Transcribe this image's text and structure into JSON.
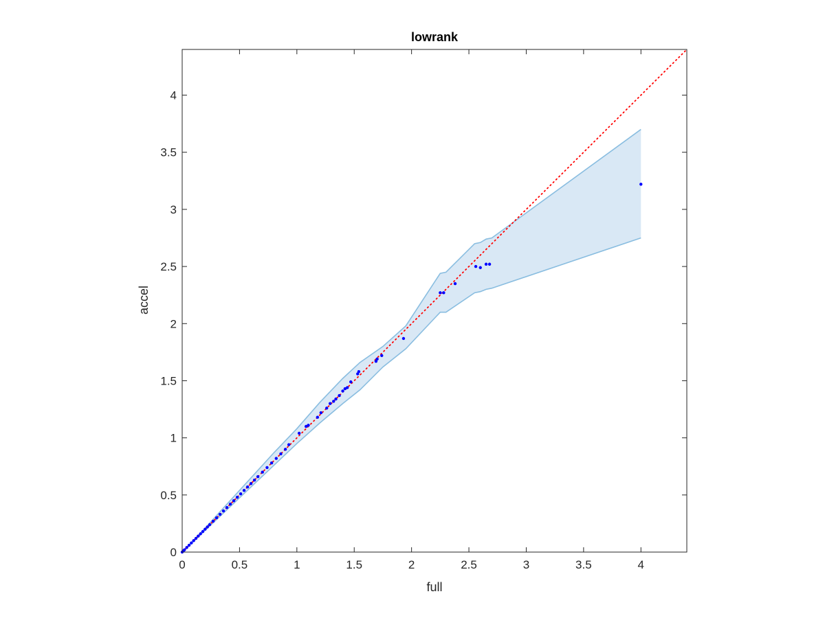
{
  "chart_data": {
    "type": "scatter",
    "title": "lowrank",
    "xlabel": "full",
    "ylabel": "accel",
    "xlim": [
      0,
      4.4
    ],
    "ylim": [
      0,
      4.4
    ],
    "grid": false,
    "x_ticks": [
      0,
      0.5,
      1,
      1.5,
      2,
      2.5,
      3,
      3.5,
      4
    ],
    "x_tick_labels": [
      "0",
      "0.5",
      "1",
      "1.5",
      "2",
      "2.5",
      "3",
      "3.5",
      "4"
    ],
    "y_ticks": [
      0,
      0.5,
      1,
      1.5,
      2,
      2.5,
      3,
      3.5,
      4
    ],
    "y_tick_labels": [
      "0",
      "0.5",
      "1",
      "1.5",
      "2",
      "2.5",
      "3",
      "3.5",
      "4"
    ],
    "reference_line": {
      "style": "dotted",
      "color": "#ff0000",
      "x": [
        0,
        4.4
      ],
      "y": [
        0,
        4.4
      ]
    },
    "band": {
      "fill_color": "#d9e8f5",
      "edge_color": "#89bde0",
      "x": [
        0,
        0.2,
        0.4,
        0.6,
        0.8,
        1.0,
        1.2,
        1.4,
        1.55,
        1.75,
        1.95,
        2.25,
        2.3,
        2.55,
        2.6,
        2.65,
        2.7,
        4.0
      ],
      "upper": [
        0,
        0.21,
        0.43,
        0.65,
        0.87,
        1.08,
        1.31,
        1.52,
        1.66,
        1.8,
        1.98,
        2.44,
        2.45,
        2.7,
        2.71,
        2.74,
        2.75,
        3.7
      ],
      "lower": [
        0,
        0.19,
        0.38,
        0.57,
        0.76,
        0.95,
        1.13,
        1.3,
        1.42,
        1.62,
        1.78,
        2.1,
        2.1,
        2.27,
        2.28,
        2.3,
        2.31,
        2.75
      ]
    },
    "series": [
      {
        "color": "#0000ff",
        "x": [
          0.0,
          0.01,
          0.02,
          0.04,
          0.06,
          0.08,
          0.1,
          0.12,
          0.14,
          0.16,
          0.18,
          0.2,
          0.22,
          0.24,
          0.27,
          0.3,
          0.33,
          0.36,
          0.39,
          0.42,
          0.45,
          0.48,
          0.51,
          0.54,
          0.57,
          0.6,
          0.63,
          0.66,
          0.7,
          0.74,
          0.78,
          0.82,
          0.86,
          0.9,
          0.93,
          1.02,
          1.08,
          1.1,
          1.18,
          1.21,
          1.26,
          1.29,
          1.32,
          1.34,
          1.37,
          1.4,
          1.42,
          1.44,
          1.47,
          1.53,
          1.54,
          1.69,
          1.7,
          1.74,
          1.93,
          2.25,
          2.28,
          2.38,
          2.56,
          2.6,
          2.65,
          2.68,
          4.0
        ],
        "y": [
          0.0,
          0.01,
          0.02,
          0.04,
          0.06,
          0.08,
          0.1,
          0.12,
          0.14,
          0.16,
          0.18,
          0.2,
          0.22,
          0.24,
          0.27,
          0.3,
          0.33,
          0.36,
          0.39,
          0.42,
          0.45,
          0.48,
          0.51,
          0.54,
          0.57,
          0.6,
          0.63,
          0.66,
          0.7,
          0.74,
          0.78,
          0.82,
          0.86,
          0.9,
          0.94,
          1.04,
          1.1,
          1.11,
          1.18,
          1.22,
          1.26,
          1.3,
          1.32,
          1.34,
          1.37,
          1.41,
          1.43,
          1.44,
          1.49,
          1.56,
          1.58,
          1.67,
          1.69,
          1.72,
          1.87,
          2.27,
          2.27,
          2.35,
          2.5,
          2.49,
          2.52,
          2.52,
          3.22
        ]
      }
    ]
  }
}
